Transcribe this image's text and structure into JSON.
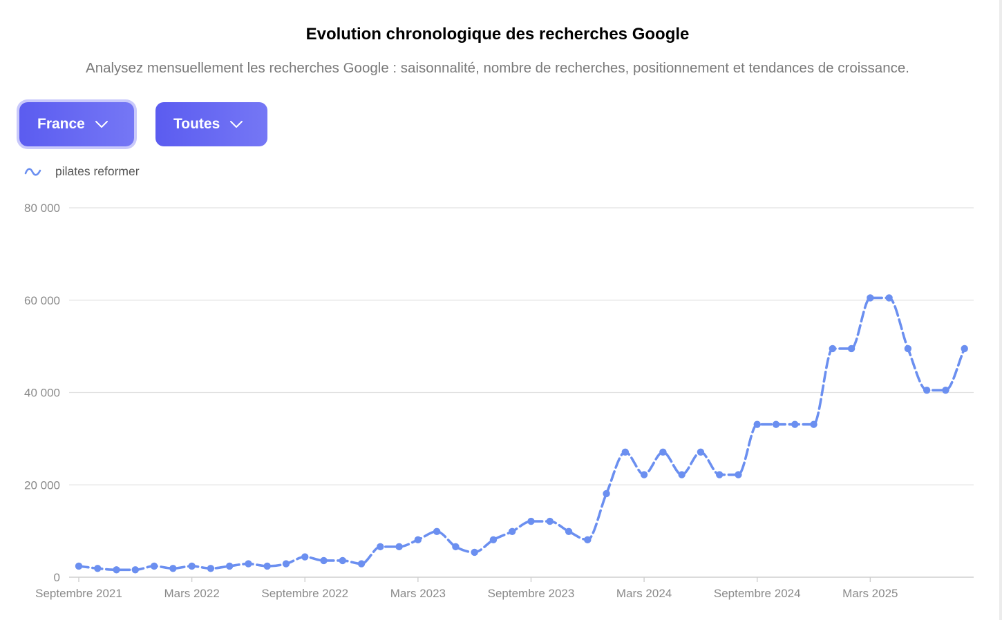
{
  "header": {
    "title": "Evolution chronologique des recherches Google",
    "subtitle": "Analysez mensuellement les recherches Google : saisonnalité, nombre de recherches, positionnement et tendances de croissance."
  },
  "filters": {
    "country": {
      "label": "France",
      "icon": "chevron-down-icon"
    },
    "type": {
      "label": "Toutes",
      "icon": "chevron-down-icon"
    }
  },
  "legend": {
    "label": "pilates reformer",
    "icon": "wave-icon"
  },
  "colors": {
    "accent": "#5b5cf0",
    "series": "#6b8ff0",
    "grid": "#e2e2e2",
    "axis_text": "#8a8a8a"
  },
  "chart_data": {
    "type": "line",
    "title": "",
    "xlabel": "",
    "ylabel": "",
    "ylim": [
      0,
      80000
    ],
    "yticks": [
      0,
      20000,
      40000,
      60000,
      80000
    ],
    "ytick_labels": [
      "0",
      "20 000",
      "40 000",
      "60 000",
      "80 000"
    ],
    "xticks": [
      {
        "label": "Septembre 2021",
        "index": 0
      },
      {
        "label": "Mars 2022",
        "index": 6
      },
      {
        "label": "Septembre 2022",
        "index": 12
      },
      {
        "label": "Mars 2023",
        "index": 18
      },
      {
        "label": "Septembre 2023",
        "index": 24
      },
      {
        "label": "Mars 2024",
        "index": 30
      },
      {
        "label": "Septembre 2024",
        "index": 36
      },
      {
        "label": "Mars 2025",
        "index": 42
      }
    ],
    "grid": true,
    "legend_position": "top-left",
    "x": [
      "2021-09",
      "2021-10",
      "2021-11",
      "2021-12",
      "2022-01",
      "2022-02",
      "2022-03",
      "2022-04",
      "2022-05",
      "2022-06",
      "2022-07",
      "2022-08",
      "2022-09",
      "2022-10",
      "2022-11",
      "2022-12",
      "2023-01",
      "2023-02",
      "2023-03",
      "2023-04",
      "2023-05",
      "2023-06",
      "2023-07",
      "2023-08",
      "2023-09",
      "2023-10",
      "2023-11",
      "2023-12",
      "2024-01",
      "2024-02",
      "2024-03",
      "2024-04",
      "2024-05",
      "2024-06",
      "2024-07",
      "2024-08",
      "2024-09",
      "2024-10",
      "2024-11",
      "2024-12",
      "2025-01",
      "2025-02",
      "2025-03",
      "2025-04",
      "2025-05",
      "2025-06",
      "2025-07",
      "2025-08"
    ],
    "series": [
      {
        "name": "pilates reformer",
        "values": [
          2400,
          1900,
          1600,
          1600,
          2400,
          1900,
          2400,
          1900,
          2400,
          2900,
          2400,
          2900,
          4400,
          3600,
          3600,
          2900,
          6600,
          6600,
          8100,
          9900,
          6600,
          5400,
          8100,
          9900,
          12100,
          12100,
          9900,
          8100,
          18100,
          27100,
          22200,
          27100,
          22200,
          27100,
          22200,
          22200,
          33100,
          33100,
          33100,
          33100,
          49500,
          49500,
          60500,
          60500,
          49500,
          40500,
          40500,
          49500
        ]
      }
    ]
  }
}
